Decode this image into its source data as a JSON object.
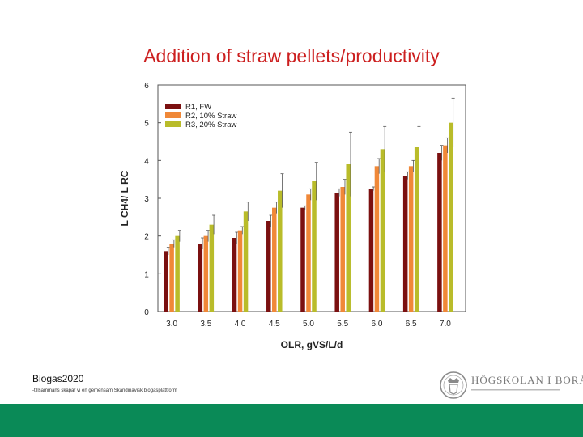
{
  "slide": {
    "title": "Addition of straw pellets/productivity",
    "footer_org": "Biogas2020",
    "footer_sub": "-tillsammans skapar vi en gemensam Skandinavisk biogasplattform",
    "logo_text": "HÖGSKOLAN I BORÅS",
    "bar_color": "#0a8a57"
  },
  "chart_data": {
    "type": "bar",
    "xlabel": "OLR, gVS/L/d",
    "ylabel": "L CH4/ L RC",
    "ylim": [
      0,
      6
    ],
    "yticks": [
      "0",
      "1",
      "2",
      "3",
      "4",
      "5",
      "6"
    ],
    "categories": [
      "3.0",
      "3.5",
      "4.0",
      "4.5",
      "5.0",
      "5.5",
      "6.0",
      "6.5",
      "7.0"
    ],
    "legend_position": "top-left",
    "series": [
      {
        "name": "R1, FW",
        "color": "#7b1010",
        "values": [
          1.6,
          1.8,
          1.95,
          2.4,
          2.75,
          3.15,
          3.25,
          3.6,
          4.2
        ],
        "errors": [
          0.1,
          0.15,
          0.15,
          0.15,
          0.05,
          0.1,
          0.05,
          0.1,
          0.2
        ]
      },
      {
        "name": "R2, 10% Straw",
        "color": "#f08838",
        "values": [
          1.8,
          2.0,
          2.15,
          2.75,
          3.1,
          3.3,
          3.85,
          3.85,
          4.4
        ],
        "errors": [
          0.1,
          0.15,
          0.1,
          0.15,
          0.15,
          0.2,
          0.2,
          0.15,
          0.2
        ]
      },
      {
        "name": "R3, 20% Straw",
        "color": "#b9bc2a",
        "values": [
          2.0,
          2.3,
          2.65,
          3.2,
          3.45,
          3.9,
          4.3,
          4.35,
          5.0
        ],
        "errors": [
          0.15,
          0.25,
          0.25,
          0.45,
          0.5,
          0.85,
          0.6,
          0.55,
          0.65
        ]
      }
    ]
  }
}
